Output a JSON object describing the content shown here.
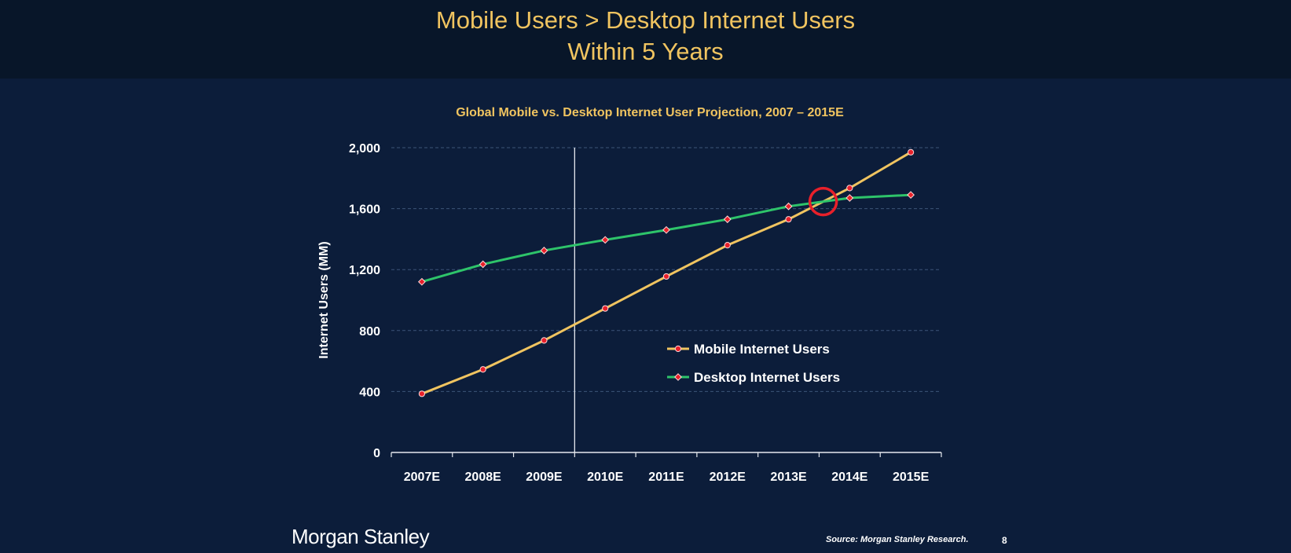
{
  "slide": {
    "title_line1": "Mobile Users > Desktop Internet Users",
    "title_line2": "Within 5 Years",
    "logo_text": "Morgan Stanley",
    "source": "Source: Morgan Stanley Research.",
    "page_number": "8"
  },
  "colors": {
    "background": "#0c1d3a",
    "header_background": "#081629",
    "title": "#f0c460",
    "mobile_line": "#f0c460",
    "desktop_line": "#2ec46a",
    "marker": "#e8202a",
    "highlight_circle": "#e8202a"
  },
  "chart_data": {
    "type": "line",
    "title": "Global Mobile vs. Desktop Internet User Projection, 2007 – 2015E",
    "xlabel": "",
    "ylabel": "Internet Users (MM)",
    "ylim": [
      0,
      2000
    ],
    "yticks": [
      0,
      400,
      800,
      1200,
      1600,
      2000
    ],
    "ytick_labels": [
      "0",
      "400",
      "800",
      "1,200",
      "1,600",
      "2,000"
    ],
    "categories": [
      "2007E",
      "2008E",
      "2009E",
      "2010E",
      "2011E",
      "2012E",
      "2013E",
      "2014E",
      "2015E"
    ],
    "grid": "horizontal dashed",
    "legend_position": "center-right",
    "divider_after_category": "2009E",
    "highlight": "crossover between 2013E and 2014E",
    "series": [
      {
        "name": "Mobile Internet Users",
        "color": "#f0c460",
        "marker": "circle",
        "values": [
          385,
          545,
          735,
          945,
          1155,
          1360,
          1530,
          1735,
          1970
        ]
      },
      {
        "name": "Desktop Internet Users",
        "color": "#2ec46a",
        "marker": "diamond",
        "values": [
          1120,
          1235,
          1325,
          1395,
          1460,
          1530,
          1615,
          1670,
          1690
        ]
      }
    ]
  }
}
